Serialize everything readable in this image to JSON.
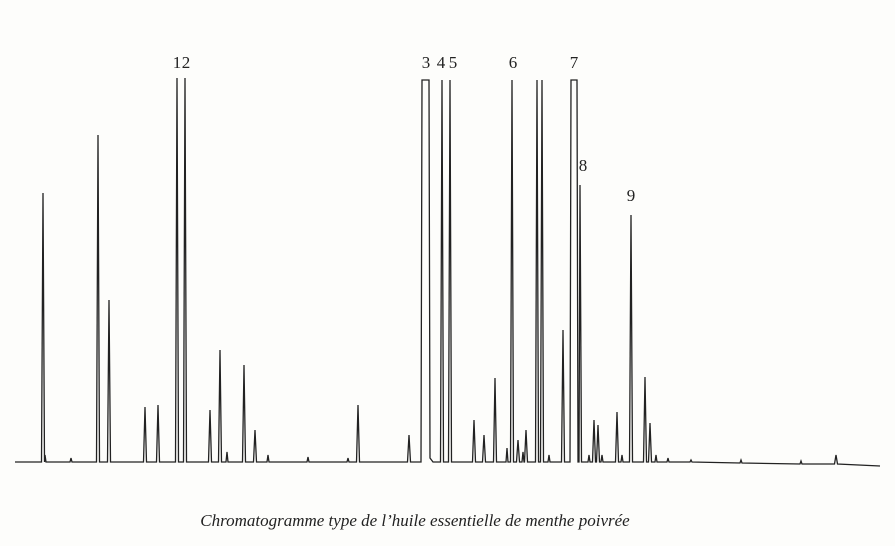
{
  "peak_labels": [
    "1",
    "2",
    "3",
    "4",
    "5",
    "6",
    "7",
    "8",
    "9"
  ],
  "caption": "Chromatogramme type de l’huile essentielle de menthe poivrée"
}
